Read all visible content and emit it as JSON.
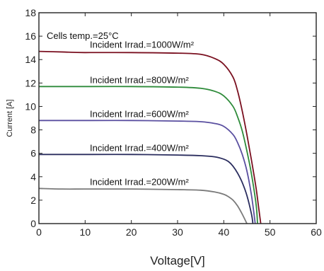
{
  "chart_data": {
    "type": "line",
    "title": "",
    "xlabel": "Voltage[V]",
    "ylabel": "Current [A]",
    "xlim": [
      0,
      60
    ],
    "ylim": [
      0,
      18
    ],
    "xticks": [
      0,
      10,
      20,
      30,
      40,
      50,
      60
    ],
    "yticks": [
      0,
      2,
      4,
      6,
      8,
      10,
      12,
      14,
      16,
      18
    ],
    "grid": false,
    "legend": "none",
    "annotations": [
      "Cells temp.=25°C"
    ],
    "series": [
      {
        "name": "Incident Irrad.=1000W/m²",
        "color": "#7a1020",
        "x": [
          0,
          5,
          10,
          20,
          30,
          35,
          38,
          40,
          42,
          43,
          44,
          45,
          46,
          47,
          47.5,
          48
        ],
        "y": [
          14.7,
          14.65,
          14.6,
          14.6,
          14.55,
          14.45,
          14.1,
          13.6,
          12.5,
          11.3,
          9.6,
          7.6,
          5.4,
          3.0,
          1.5,
          0
        ]
      },
      {
        "name": "Incident Irrad.=800W/m²",
        "color": "#2e8b3a",
        "x": [
          0,
          5,
          10,
          20,
          30,
          35,
          38,
          40,
          42,
          43,
          44,
          45,
          46,
          47,
          47.3
        ],
        "y": [
          11.7,
          11.7,
          11.7,
          11.7,
          11.65,
          11.55,
          11.3,
          10.9,
          10.0,
          9.1,
          7.9,
          6.2,
          4.2,
          1.6,
          0
        ]
      },
      {
        "name": "Incident Irrad.=600W/m²",
        "color": "#5a4fa0",
        "x": [
          0,
          5,
          10,
          20,
          30,
          35,
          38,
          40,
          42,
          43,
          44,
          45,
          46,
          46.8
        ],
        "y": [
          8.8,
          8.8,
          8.8,
          8.8,
          8.75,
          8.7,
          8.55,
          8.3,
          7.6,
          6.9,
          5.9,
          4.5,
          2.4,
          0
        ]
      },
      {
        "name": "Incident Irrad.=400W/m²",
        "color": "#2a2d5e",
        "x": [
          0,
          5,
          10,
          20,
          30,
          35,
          38,
          40,
          41,
          42,
          43,
          44,
          45,
          46,
          46.3
        ],
        "y": [
          5.9,
          5.9,
          5.9,
          5.9,
          5.85,
          5.8,
          5.7,
          5.5,
          5.3,
          4.9,
          4.3,
          3.5,
          2.4,
          0.8,
          0
        ]
      },
      {
        "name": "Incident Irrad.=200W/m²",
        "color": "#7a7a7a",
        "x": [
          0,
          5,
          10,
          20,
          30,
          35,
          38,
          40,
          41,
          42,
          43,
          44,
          45
        ],
        "y": [
          3.0,
          2.95,
          2.95,
          2.95,
          2.9,
          2.85,
          2.7,
          2.5,
          2.3,
          2.0,
          1.5,
          0.8,
          0
        ]
      }
    ]
  }
}
